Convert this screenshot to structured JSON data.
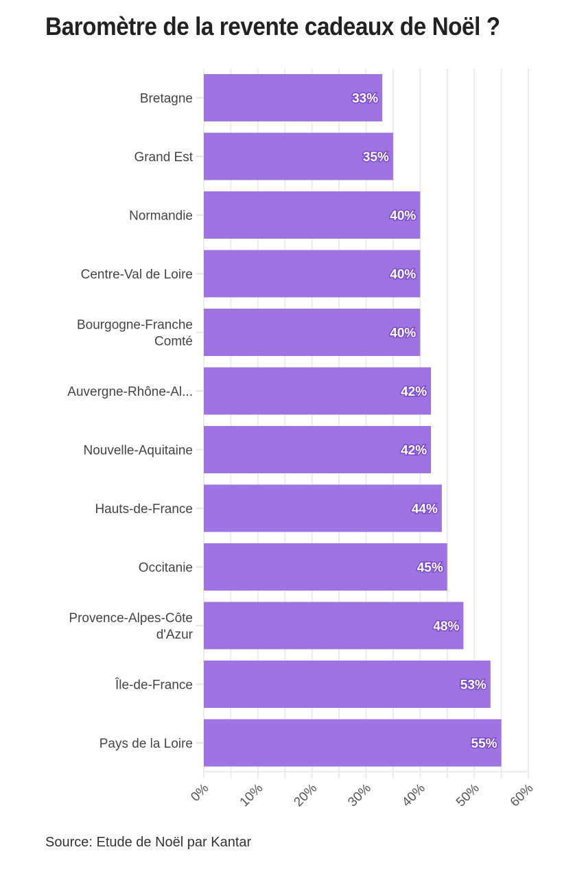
{
  "chart_data": {
    "type": "bar",
    "orientation": "horizontal",
    "title": "Baromètre de la revente cadeaux de Noël ?",
    "source": "Source: Etude de Noël par Kantar",
    "categories": [
      "Bretagne",
      "Grand Est",
      "Normandie",
      "Centre-Val de Loire",
      "Bourgogne-Franche Comté",
      "Auvergne-Rhône-Al...",
      "Nouvelle-Aquitaine",
      "Hauts-de-France",
      "Occitanie",
      "Provence-Alpes-Côte d'Azur",
      "Île-de-France",
      "Pays de la Loire"
    ],
    "category_lines": [
      [
        "Bretagne"
      ],
      [
        "Grand Est"
      ],
      [
        "Normandie"
      ],
      [
        "Centre-Val de Loire"
      ],
      [
        "Bourgogne-Franche",
        "Comté"
      ],
      [
        "Auvergne-Rhône-Al..."
      ],
      [
        "Nouvelle-Aquitaine"
      ],
      [
        "Hauts-de-France"
      ],
      [
        "Occitanie"
      ],
      [
        "Provence-Alpes-Côte",
        "d'Azur"
      ],
      [
        "Île-de-France"
      ],
      [
        "Pays de la Loire"
      ]
    ],
    "values": [
      33,
      35,
      40,
      40,
      40,
      42,
      42,
      44,
      45,
      48,
      53,
      55
    ],
    "data_labels": [
      "33%",
      "35%",
      "40%",
      "40%",
      "40%",
      "42%",
      "42%",
      "44%",
      "45%",
      "48%",
      "53%",
      "55%"
    ],
    "xlim": [
      0,
      60
    ],
    "x_ticks": [
      0,
      10,
      20,
      30,
      40,
      50,
      60
    ],
    "x_tick_labels": [
      "0%",
      "10%",
      "20%",
      "30%",
      "40%",
      "50%",
      "60%"
    ],
    "grid": true,
    "bar_color": "#a073e2",
    "xlabel": "",
    "ylabel": ""
  }
}
